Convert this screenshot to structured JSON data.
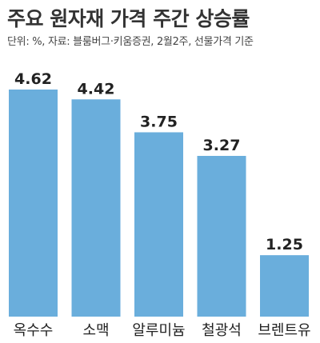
{
  "chart_data": {
    "type": "bar",
    "title": "주요 원자재 가격 주간 상승률",
    "subtitle": "단위: %, 자료: 블룸버그·키움증권, 2월2주, 선물가격 기준",
    "categories": [
      "옥수수",
      "소맥",
      "알루미늄",
      "철광석",
      "브렌트유"
    ],
    "values": [
      4.62,
      4.42,
      3.75,
      3.27,
      1.25
    ],
    "value_labels": [
      "4.62",
      "4.42",
      "3.75",
      "3.27",
      "1.25"
    ],
    "bar_color": "#6aaedc",
    "ylim": [
      0,
      4.75
    ],
    "grid": false,
    "legend": "none"
  }
}
